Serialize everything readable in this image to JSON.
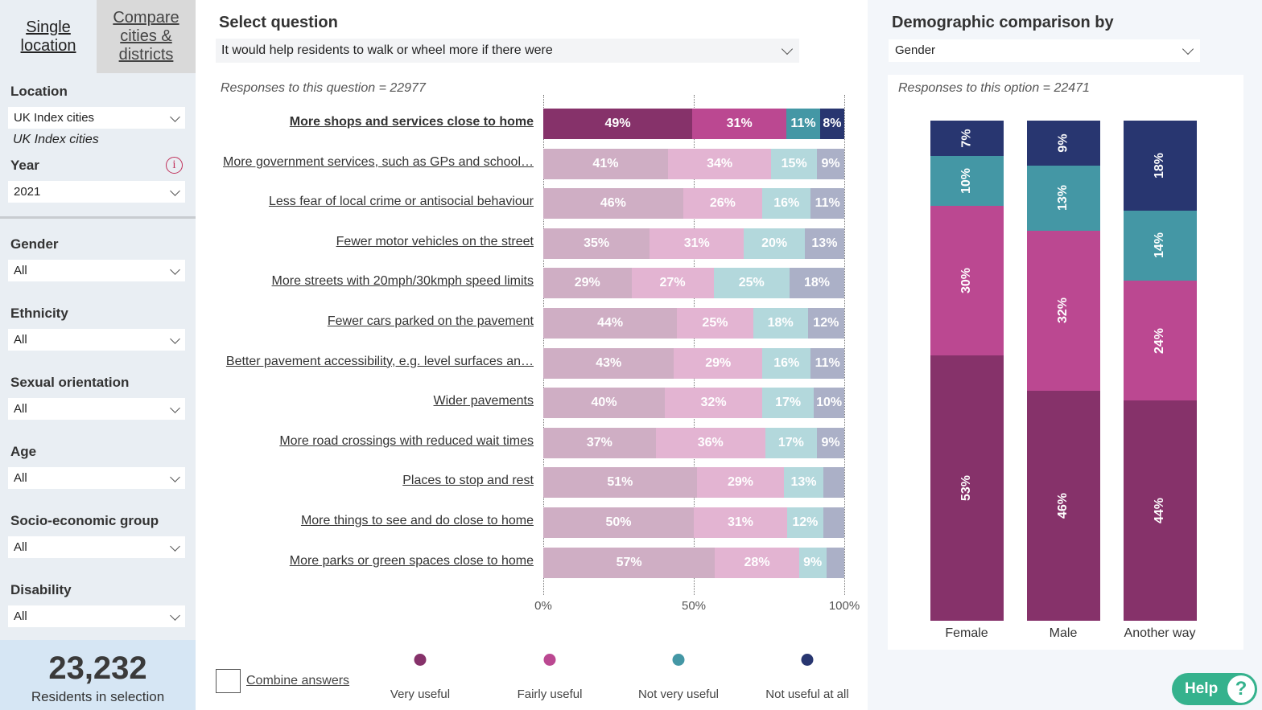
{
  "tabs": {
    "single": "Single location",
    "compare": "Compare cities & districts"
  },
  "filters": {
    "location_label": "Location",
    "location_value": "UK Index cities",
    "location_note": "UK Index cities",
    "year_label": "Year",
    "year_value": "2021",
    "gender_label": "Gender",
    "gender_value": "All",
    "ethnicity_label": "Ethnicity",
    "ethnicity_value": "All",
    "sexual_orientation_label": "Sexual orientation",
    "sexual_orientation_value": "All",
    "age_label": "Age",
    "age_value": "All",
    "seg_label": "Socio-economic group",
    "seg_value": "All",
    "disability_label": "Disability",
    "disability_value": "All"
  },
  "summary": {
    "count": "23,232",
    "label": "Residents in selection"
  },
  "question": {
    "title": "Select question",
    "value": "It would help residents to walk or wheel more if there were",
    "responses": "Responses to this question = 22977",
    "combine_label": "Combine answers"
  },
  "colors": {
    "very": "#86326a",
    "fairly": "#bb4891",
    "not_very": "#4497a5",
    "not_at_all": "#283670",
    "very_faded": "#cfaec4",
    "fairly_faded": "#e3b4d2",
    "not_very_faded": "#b3d8dc",
    "not_at_all_faded": "#abb0c7"
  },
  "chart_data": [
    {
      "type": "bar",
      "orientation": "horizontal",
      "stacked": true,
      "xlim": [
        0,
        100
      ],
      "x_ticks": [
        "0%",
        "50%",
        "100%"
      ],
      "series_names": [
        "Very useful",
        "Fairly useful",
        "Not very useful",
        "Not useful at all"
      ],
      "selected_row": 0,
      "categories": [
        "More shops and services close to home",
        "More government services, such as GPs and school…",
        "Less fear of local crime or antisocial behaviour",
        "Fewer motor vehicles on the street",
        "More streets with 20mph/30kmph speed limits",
        "Fewer cars parked on the pavement",
        "Better pavement accessibility, e.g. level surfaces an…",
        "Wider pavements",
        "More road crossings with reduced wait times",
        "Places to stop and rest",
        "More things to see and do close to home",
        "More parks or green spaces close to home"
      ],
      "values": [
        [
          49,
          31,
          11,
          8
        ],
        [
          41,
          34,
          15,
          9
        ],
        [
          46,
          26,
          16,
          11
        ],
        [
          35,
          31,
          20,
          13
        ],
        [
          29,
          27,
          25,
          18
        ],
        [
          44,
          25,
          18,
          12
        ],
        [
          43,
          29,
          16,
          11
        ],
        [
          40,
          32,
          17,
          10
        ],
        [
          37,
          36,
          17,
          9
        ],
        [
          51,
          29,
          13,
          7
        ],
        [
          50,
          31,
          12,
          7
        ],
        [
          57,
          28,
          9,
          6
        ]
      ],
      "label_shown": [
        [
          1,
          1,
          1,
          1
        ],
        [
          1,
          1,
          1,
          1
        ],
        [
          1,
          1,
          1,
          1
        ],
        [
          1,
          1,
          1,
          1
        ],
        [
          1,
          1,
          1,
          1
        ],
        [
          1,
          1,
          1,
          1
        ],
        [
          1,
          1,
          1,
          1
        ],
        [
          1,
          1,
          1,
          1
        ],
        [
          1,
          1,
          1,
          1
        ],
        [
          1,
          1,
          1,
          0
        ],
        [
          1,
          1,
          1,
          0
        ],
        [
          1,
          1,
          1,
          0
        ]
      ]
    },
    {
      "type": "bar",
      "orientation": "vertical",
      "stacked": true,
      "title": "Demographic comparison by",
      "selector": "Gender",
      "responses": "Responses to this option = 22471",
      "categories": [
        "Female",
        "Male",
        "Another way"
      ],
      "series_names": [
        "Very useful",
        "Fairly useful",
        "Not very useful",
        "Not useful at all"
      ],
      "values": [
        [
          53,
          30,
          10,
          7
        ],
        [
          46,
          32,
          13,
          9
        ],
        [
          44,
          24,
          14,
          18
        ]
      ]
    }
  ],
  "help": {
    "label": "Help",
    "icon": "?"
  }
}
